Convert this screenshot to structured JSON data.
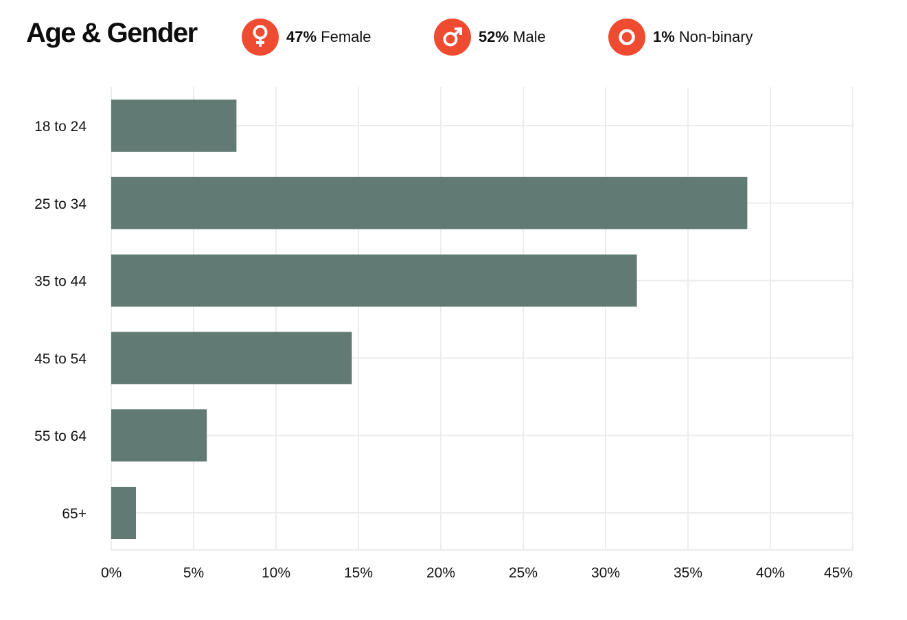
{
  "colors": {
    "accent": "#ef4b31",
    "bar": "#627a74",
    "grid": "#ececec"
  },
  "header": {
    "title": "Age & Gender",
    "stats": [
      {
        "icon": "female-symbol-icon",
        "percent": "47%",
        "label": "Female"
      },
      {
        "icon": "male-symbol-icon",
        "percent": "52%",
        "label": "Male"
      },
      {
        "icon": "non-binary-symbol-icon",
        "percent": "1%",
        "label": "Non-binary"
      }
    ]
  },
  "chart_data": {
    "type": "bar",
    "orientation": "horizontal",
    "categories": [
      "18 to 24",
      "25 to 34",
      "35 to 44",
      "45 to 54",
      "55 to 64",
      "65+"
    ],
    "values": [
      7.6,
      38.6,
      31.9,
      14.6,
      5.8,
      1.5
    ],
    "x_ticks": [
      "0%",
      "5%",
      "10%",
      "15%",
      "20%",
      "25%",
      "30%",
      "35%",
      "40%",
      "45%"
    ],
    "xlim": [
      0,
      45
    ],
    "grid": true,
    "legend": "none"
  }
}
